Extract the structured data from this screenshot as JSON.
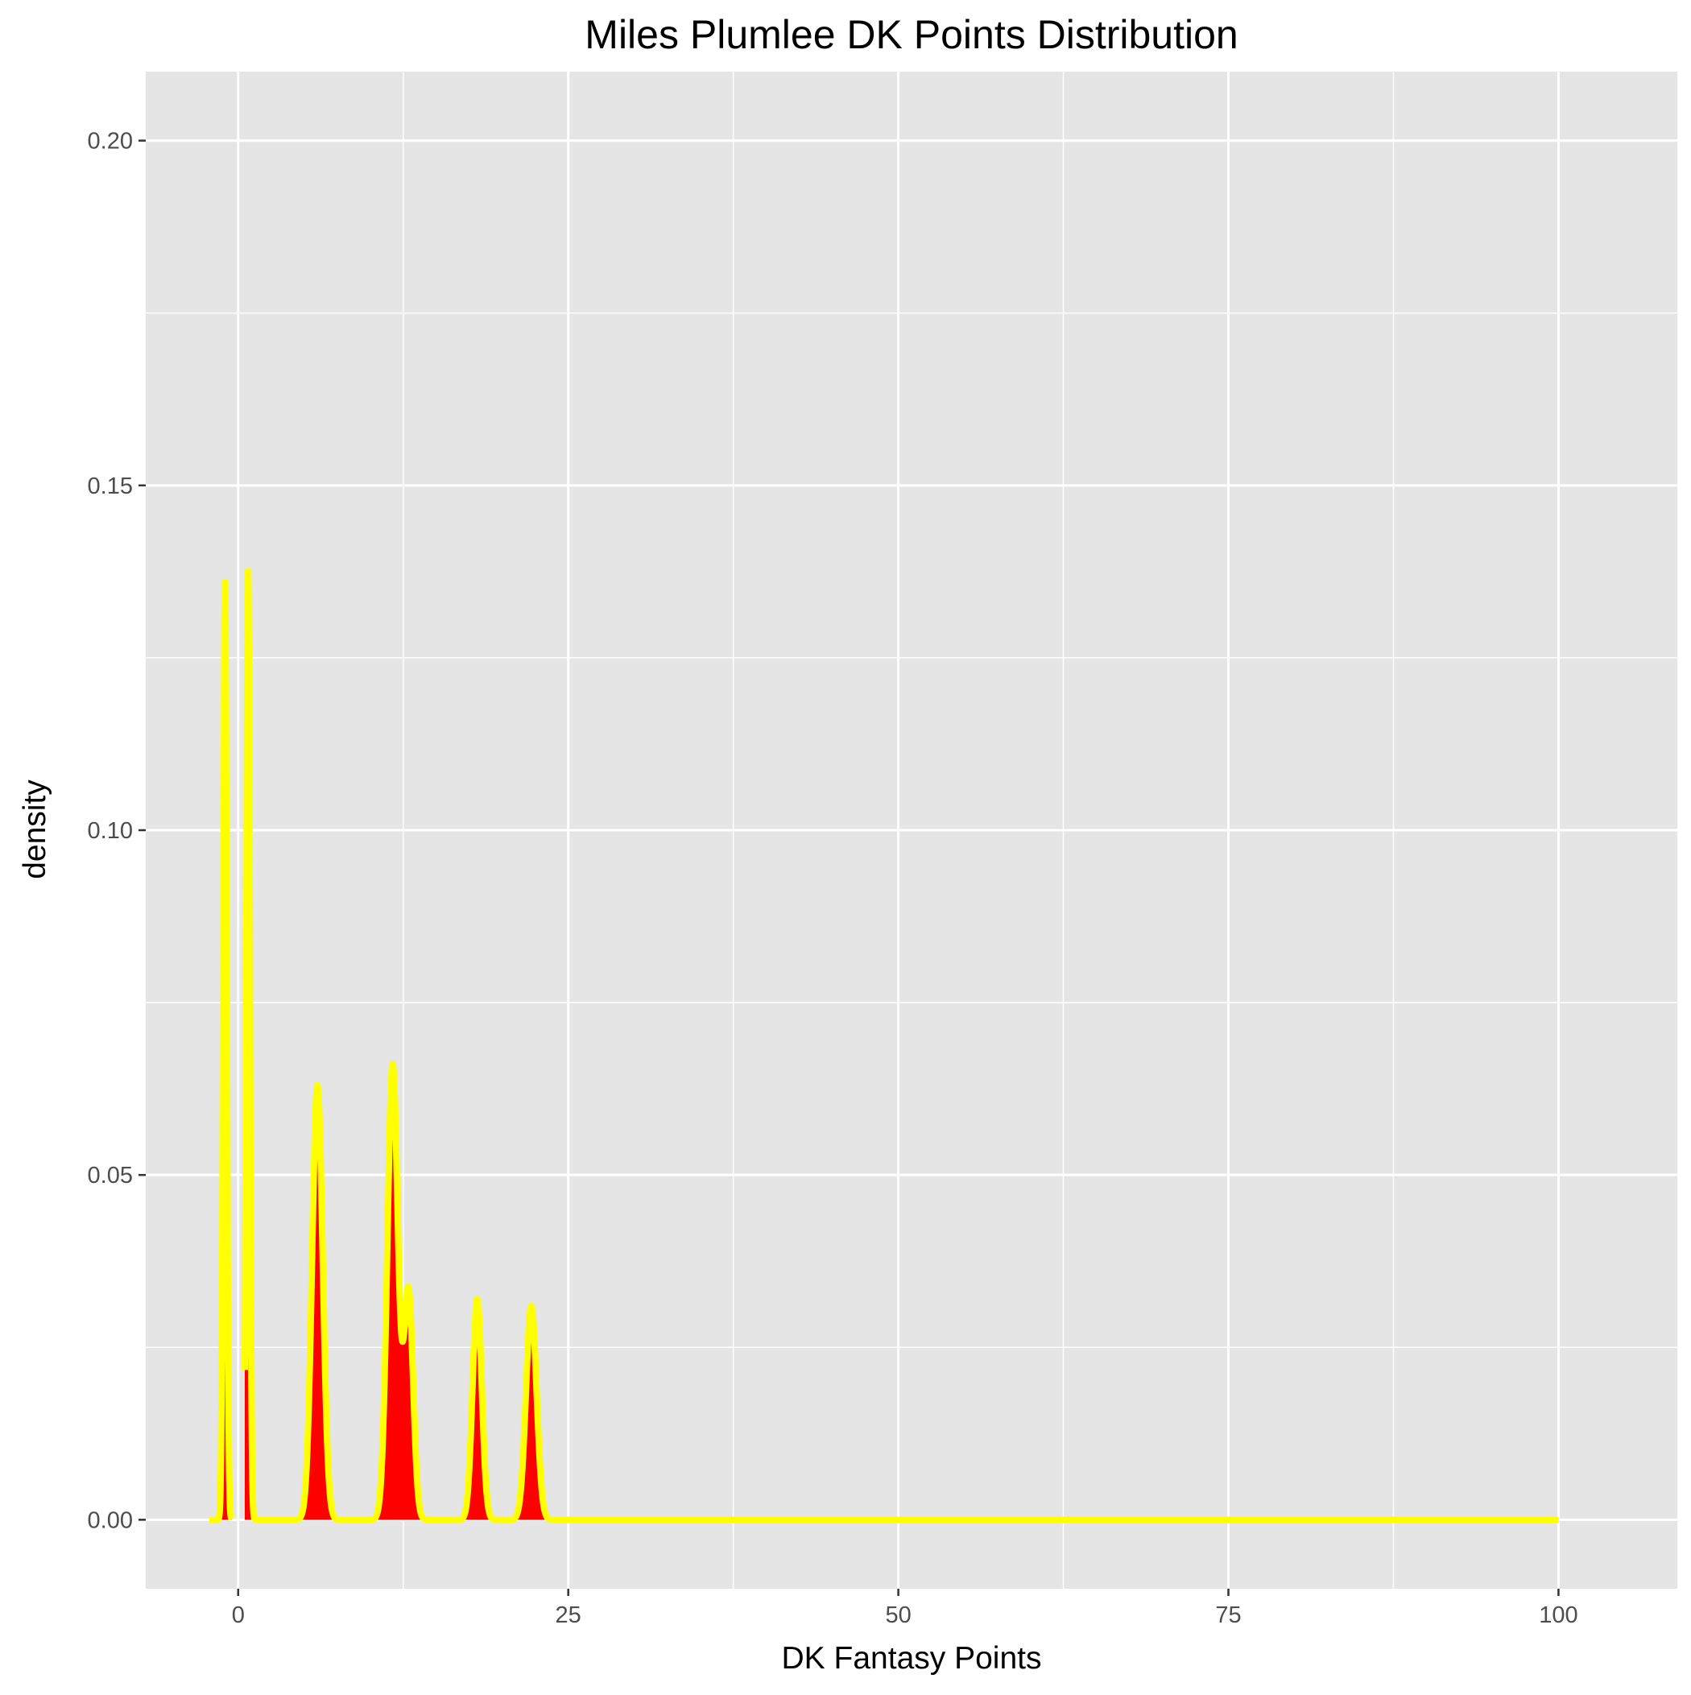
{
  "chart_data": {
    "type": "area",
    "title": "Miles Plumlee DK Points Distribution",
    "xlabel": "DK Fantasy Points",
    "ylabel": "density",
    "xlim": [
      -7,
      109
    ],
    "ylim": [
      -0.01,
      0.21
    ],
    "x_ticks": [
      0,
      25,
      50,
      75,
      100
    ],
    "x_tick_labels": [
      "0",
      "25",
      "50",
      "75",
      "100"
    ],
    "y_ticks": [
      0,
      0.05,
      0.1,
      0.15,
      0.2
    ],
    "y_tick_labels": [
      "0.00",
      "0.05",
      "0.10",
      "0.15",
      "0.20"
    ],
    "grid": true,
    "fill_color": "#ff0000",
    "line_color": "#ffff00",
    "panel_color": "#e5e5e5",
    "grid_color": "#ffffff",
    "x_range": [
      -2.2,
      100
    ],
    "components": [
      {
        "center": -1.0,
        "height": 0.136,
        "sd": 0.13
      },
      {
        "center": 0.75,
        "height": 0.138,
        "sd": 0.13
      },
      {
        "center": 6.0,
        "height": 0.063,
        "sd": 0.4
      },
      {
        "center": 11.7,
        "height": 0.066,
        "sd": 0.4
      },
      {
        "center": 12.9,
        "height": 0.033,
        "sd": 0.35
      },
      {
        "center": 18.1,
        "height": 0.032,
        "sd": 0.35
      },
      {
        "center": 22.2,
        "height": 0.031,
        "sd": 0.4
      }
    ],
    "gaps": [
      [
        -0.5,
        0.5
      ]
    ]
  }
}
